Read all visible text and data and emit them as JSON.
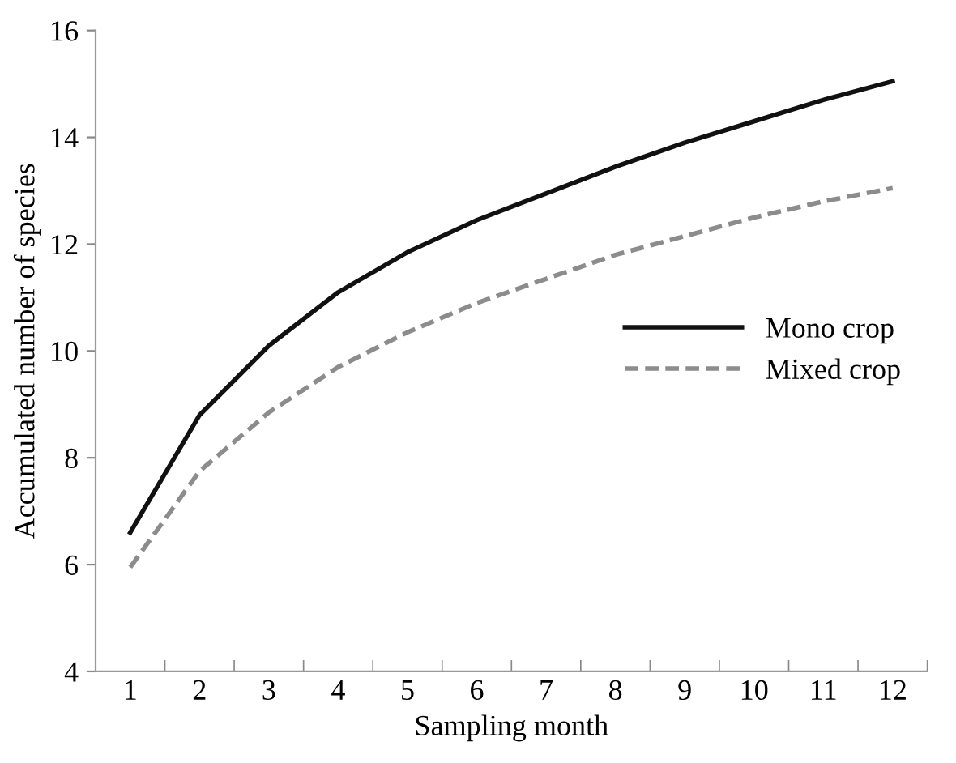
{
  "chart_data": {
    "type": "line",
    "xlabel": "Sampling month",
    "ylabel": "Accumulated number of species",
    "categories": [
      "1",
      "2",
      "3",
      "4",
      "5",
      "6",
      "7",
      "8",
      "9",
      "10",
      "11",
      "12"
    ],
    "series": [
      {
        "name": "Mono crop",
        "color": "#111111",
        "line_style": "solid",
        "values": [
          6.6,
          8.8,
          10.1,
          11.1,
          11.85,
          12.45,
          12.95,
          13.45,
          13.9,
          14.3,
          14.7,
          15.05
        ]
      },
      {
        "name": "Mixed crop",
        "color": "#8c8c8c",
        "line_style": "dashed",
        "values": [
          5.95,
          7.75,
          8.85,
          9.7,
          10.35,
          10.9,
          11.35,
          11.8,
          12.15,
          12.5,
          12.8,
          13.05
        ]
      }
    ],
    "ylim": [
      4,
      16
    ],
    "yticks": [
      4,
      6,
      8,
      10,
      12,
      14,
      16
    ],
    "grid": false,
    "legend": "center right",
    "marker": "none"
  }
}
